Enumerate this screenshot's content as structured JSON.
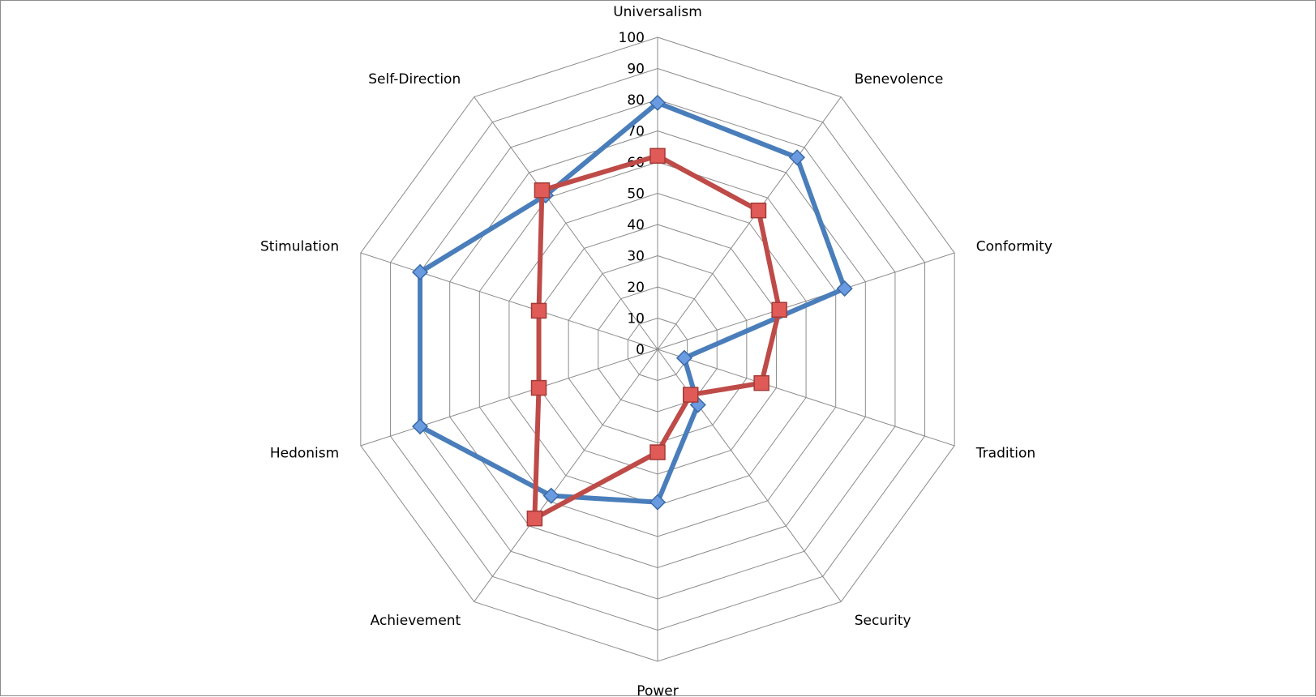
{
  "chart_data": {
    "type": "radar",
    "categories": [
      "Universalism",
      "Benevolence",
      "Conformity",
      "Tradition",
      "Security",
      "Power",
      "Achievement",
      "Hedonism",
      "Stimulation",
      "Self-Direction"
    ],
    "series": [
      {
        "values": [
          79,
          76,
          63,
          9,
          22,
          49,
          58,
          80,
          80,
          61
        ],
        "color": "#4a7ebb",
        "marker": "diamond"
      },
      {
        "values": [
          62,
          55,
          41,
          35,
          18,
          33,
          67,
          40,
          40,
          63
        ],
        "color": "#be4b48",
        "marker": "square"
      }
    ],
    "ticks": [
      "0",
      "10",
      "20",
      "30",
      "40",
      "50",
      "60",
      "70",
      "80",
      "90",
      "100"
    ],
    "rmin": 0,
    "rmax": 100,
    "grid": true,
    "legend": "none"
  }
}
